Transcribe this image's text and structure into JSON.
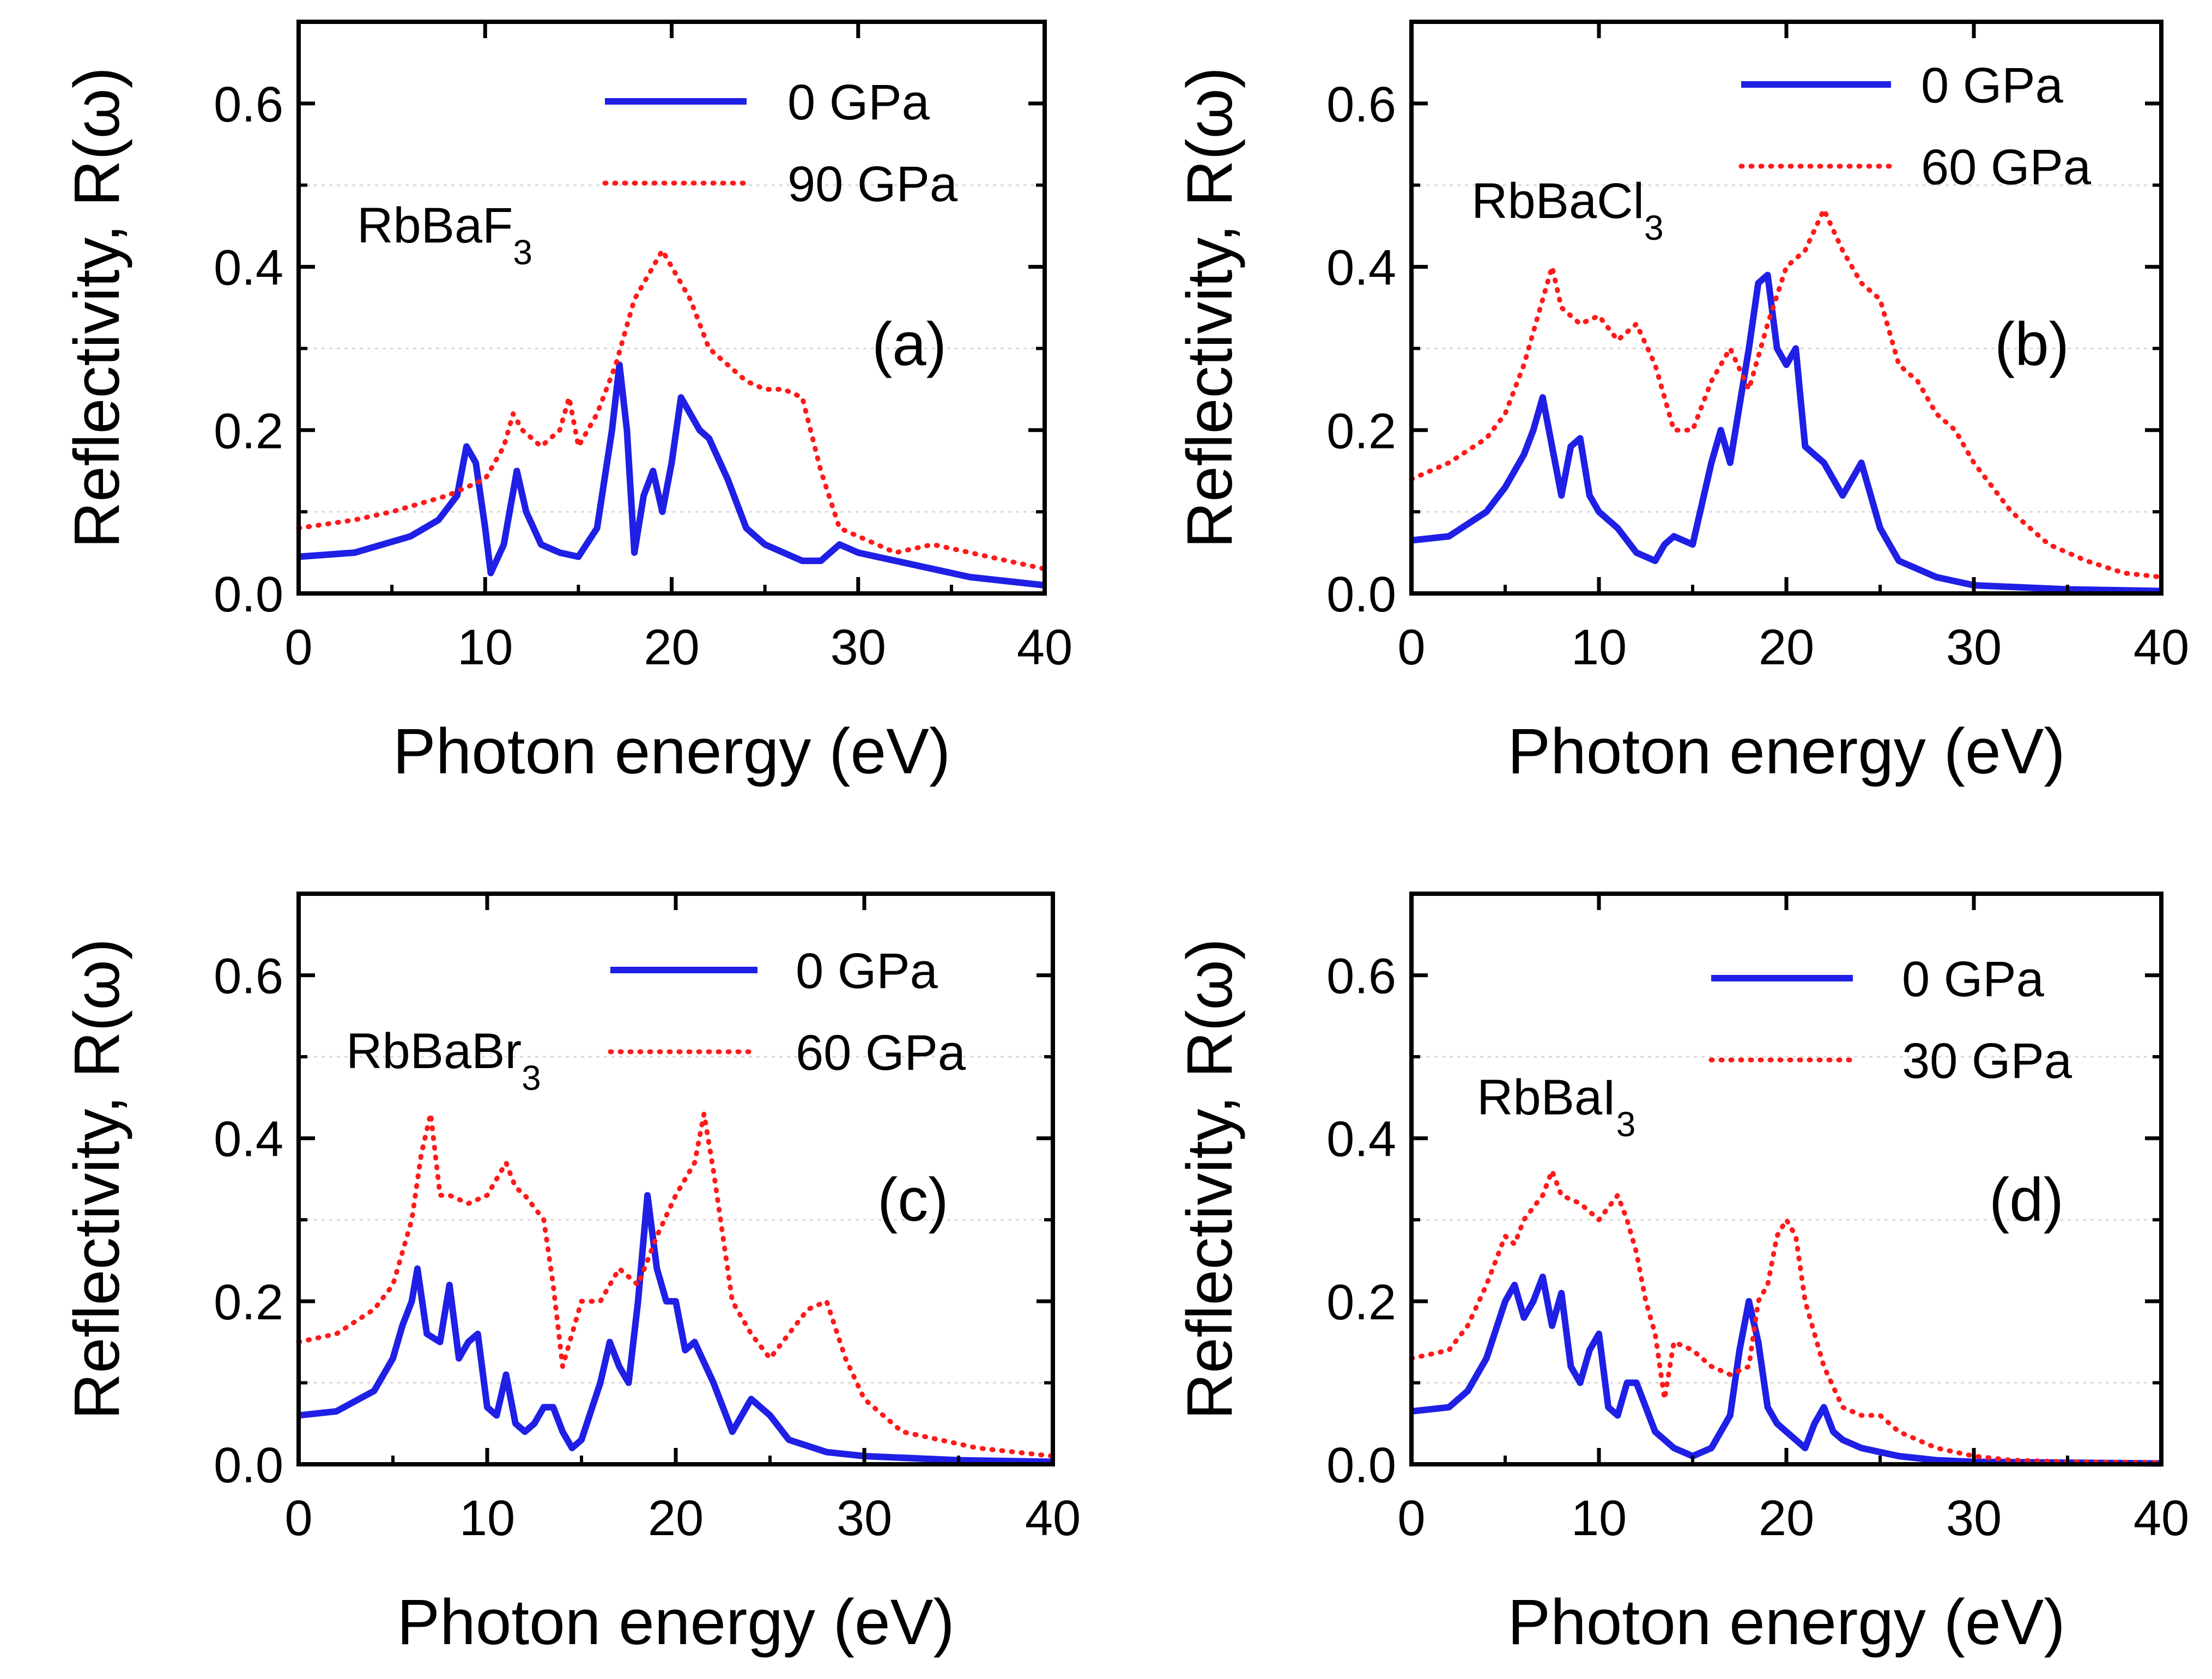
{
  "colors": {
    "series0": "#1f1fe6",
    "series1": "#ff1a1a",
    "grid": "#d9d9d9",
    "axis": "#000000"
  },
  "chart_data": [
    {
      "type": "line",
      "panel_label": "(a)",
      "compound": "RbBaF",
      "compound_sub": "3",
      "xlabel": "Photon energy (eV)",
      "ylabel": "Reflectivity, R(ω)",
      "xlim": [
        0,
        40
      ],
      "ylim": [
        0,
        0.7
      ],
      "xticks": [
        "0",
        "10",
        "20",
        "30",
        "40"
      ],
      "yticks": [
        "0.0",
        "0.2",
        "0.4",
        "0.6"
      ],
      "grid": "horizontal dotted at 0.1, 0.3, 0.5",
      "legend": "top-right",
      "series": [
        {
          "name": "0 GPa",
          "style": "solid",
          "x": [
            0,
            3,
            6,
            7.5,
            8.5,
            9,
            9.5,
            10,
            10.3,
            11,
            11.7,
            12.2,
            13,
            14,
            15,
            16,
            16.8,
            17.2,
            17.6,
            18,
            18.5,
            19,
            19.5,
            20,
            20.5,
            21,
            21.5,
            22,
            23,
            24,
            25,
            26,
            27,
            28,
            29,
            30,
            32,
            34,
            36,
            38,
            40
          ],
          "y": [
            0.045,
            0.05,
            0.07,
            0.09,
            0.12,
            0.18,
            0.16,
            0.08,
            0.025,
            0.06,
            0.15,
            0.1,
            0.06,
            0.05,
            0.045,
            0.08,
            0.2,
            0.28,
            0.2,
            0.05,
            0.12,
            0.15,
            0.1,
            0.16,
            0.24,
            0.22,
            0.2,
            0.19,
            0.14,
            0.08,
            0.06,
            0.05,
            0.04,
            0.04,
            0.06,
            0.05,
            0.04,
            0.03,
            0.02,
            0.015,
            0.01
          ]
        },
        {
          "name": "90 GPa",
          "style": "dotted",
          "x": [
            0,
            3,
            5,
            6.5,
            8,
            9,
            10,
            11,
            11.5,
            12,
            13,
            14,
            14.5,
            15,
            16,
            17,
            18,
            19,
            19.5,
            20,
            21,
            22,
            23,
            24,
            25,
            26,
            27,
            28,
            29,
            30,
            32,
            34,
            36,
            38,
            40
          ],
          "y": [
            0.08,
            0.09,
            0.1,
            0.11,
            0.12,
            0.13,
            0.14,
            0.18,
            0.22,
            0.2,
            0.18,
            0.2,
            0.24,
            0.18,
            0.22,
            0.28,
            0.36,
            0.4,
            0.42,
            0.4,
            0.36,
            0.3,
            0.28,
            0.26,
            0.25,
            0.25,
            0.24,
            0.15,
            0.08,
            0.07,
            0.05,
            0.06,
            0.05,
            0.04,
            0.03
          ]
        }
      ]
    },
    {
      "type": "line",
      "panel_label": "(b)",
      "compound": "RbBaCl",
      "compound_sub": "3",
      "xlabel": "Photon energy (eV)",
      "ylabel": "Reflectivity, R(ω)",
      "xlim": [
        0,
        40
      ],
      "ylim": [
        0,
        0.7
      ],
      "xticks": [
        "0",
        "10",
        "20",
        "30",
        "40"
      ],
      "yticks": [
        "0.0",
        "0.2",
        "0.4",
        "0.6"
      ],
      "grid": "horizontal dotted at 0.1, 0.3, 0.5",
      "legend": "top-right",
      "series": [
        {
          "name": "0 GPa",
          "style": "solid",
          "x": [
            0,
            2,
            4,
            5,
            6,
            6.5,
            7,
            7.5,
            8,
            8.5,
            9,
            9.5,
            10,
            11,
            12,
            13,
            13.5,
            14,
            15,
            16,
            16.5,
            17,
            18,
            18.5,
            19,
            19.5,
            20,
            20.5,
            21,
            22,
            23,
            24,
            25,
            26,
            28,
            30,
            35,
            40
          ],
          "y": [
            0.065,
            0.07,
            0.1,
            0.13,
            0.17,
            0.2,
            0.24,
            0.18,
            0.12,
            0.18,
            0.19,
            0.12,
            0.1,
            0.08,
            0.05,
            0.04,
            0.06,
            0.07,
            0.06,
            0.16,
            0.2,
            0.16,
            0.3,
            0.38,
            0.39,
            0.3,
            0.28,
            0.3,
            0.18,
            0.16,
            0.12,
            0.16,
            0.08,
            0.04,
            0.02,
            0.01,
            0.005,
            0.003
          ]
        },
        {
          "name": "60 GPa",
          "style": "dotted",
          "x": [
            0,
            2,
            4,
            5,
            6,
            7,
            7.5,
            8,
            9,
            10,
            11,
            12,
            13,
            14,
            15,
            16,
            17,
            18,
            19,
            20,
            21,
            22,
            23,
            24,
            25,
            26,
            27,
            28,
            29,
            30,
            32,
            34,
            36,
            38,
            40
          ],
          "y": [
            0.14,
            0.16,
            0.19,
            0.22,
            0.28,
            0.36,
            0.4,
            0.35,
            0.33,
            0.34,
            0.31,
            0.33,
            0.28,
            0.2,
            0.2,
            0.26,
            0.3,
            0.25,
            0.33,
            0.4,
            0.42,
            0.47,
            0.42,
            0.38,
            0.36,
            0.28,
            0.26,
            0.22,
            0.2,
            0.16,
            0.1,
            0.06,
            0.04,
            0.025,
            0.02
          ]
        }
      ]
    },
    {
      "type": "line",
      "panel_label": "(c)",
      "compound": "RbBaBr",
      "compound_sub": "3",
      "xlabel": "Photon energy (eV)",
      "ylabel": "Reflectivity, R(ω)",
      "xlim": [
        0,
        40
      ],
      "ylim": [
        0,
        0.7
      ],
      "xticks": [
        "0",
        "10",
        "20",
        "30",
        "40"
      ],
      "yticks": [
        "0.0",
        "0.2",
        "0.4",
        "0.6"
      ],
      "grid": "horizontal dotted at 0.1, 0.3, 0.5",
      "legend": "top-right",
      "series": [
        {
          "name": "0 GPa",
          "style": "solid",
          "x": [
            0,
            2,
            4,
            5,
            5.5,
            6,
            6.3,
            6.8,
            7.5,
            8,
            8.5,
            9,
            9.5,
            10,
            10.5,
            11,
            11.5,
            12,
            12.5,
            13,
            13.5,
            14,
            14.5,
            15,
            16,
            16.5,
            17,
            17.5,
            18,
            18.5,
            19,
            19.5,
            20,
            20.5,
            21,
            22,
            23,
            24,
            25,
            26,
            28,
            30,
            35,
            40
          ],
          "y": [
            0.06,
            0.065,
            0.09,
            0.13,
            0.17,
            0.2,
            0.24,
            0.16,
            0.15,
            0.22,
            0.13,
            0.15,
            0.16,
            0.07,
            0.06,
            0.11,
            0.05,
            0.04,
            0.05,
            0.07,
            0.07,
            0.04,
            0.02,
            0.03,
            0.1,
            0.15,
            0.12,
            0.1,
            0.2,
            0.33,
            0.24,
            0.2,
            0.2,
            0.14,
            0.15,
            0.1,
            0.04,
            0.08,
            0.06,
            0.03,
            0.015,
            0.01,
            0.005,
            0.003
          ]
        },
        {
          "name": "60 GPa",
          "style": "dotted",
          "x": [
            0,
            2,
            4,
            5,
            6,
            6.5,
            7,
            7.5,
            8,
            9,
            10,
            11,
            11.5,
            12,
            13,
            13.5,
            14,
            15,
            16,
            17,
            18,
            19,
            20,
            21,
            21.5,
            22,
            23,
            24,
            25,
            26,
            27,
            28,
            29,
            30,
            32,
            34,
            36,
            38,
            40
          ],
          "y": [
            0.15,
            0.16,
            0.19,
            0.22,
            0.3,
            0.38,
            0.43,
            0.33,
            0.33,
            0.32,
            0.33,
            0.37,
            0.34,
            0.33,
            0.3,
            0.22,
            0.12,
            0.2,
            0.2,
            0.24,
            0.22,
            0.28,
            0.33,
            0.37,
            0.43,
            0.36,
            0.2,
            0.16,
            0.13,
            0.16,
            0.19,
            0.2,
            0.13,
            0.08,
            0.04,
            0.03,
            0.02,
            0.015,
            0.01
          ]
        }
      ]
    },
    {
      "type": "line",
      "panel_label": "(d)",
      "compound": "RbBaI",
      "compound_sub": "3",
      "xlabel": "Photon energy (eV)",
      "ylabel": "Reflectivity, R(ω)",
      "xlim": [
        0,
        40
      ],
      "ylim": [
        0,
        0.7
      ],
      "xticks": [
        "0",
        "10",
        "20",
        "30",
        "40"
      ],
      "yticks": [
        "0.0",
        "0.2",
        "0.4",
        "0.6"
      ],
      "grid": "horizontal dotted at 0.1, 0.3, 0.5",
      "legend": "top-right",
      "series": [
        {
          "name": "0 GPa",
          "style": "solid",
          "x": [
            0,
            2,
            3,
            4,
            5,
            5.5,
            6,
            6.5,
            7,
            7.5,
            8,
            8.5,
            9,
            9.5,
            10,
            10.5,
            11,
            11.5,
            12,
            12.5,
            13,
            14,
            15,
            16,
            17,
            17.5,
            18,
            18.5,
            19,
            19.5,
            20,
            20.5,
            21,
            21.5,
            22,
            22.5,
            23,
            24,
            25,
            26,
            28,
            30,
            35,
            40
          ],
          "y": [
            0.065,
            0.07,
            0.09,
            0.13,
            0.2,
            0.22,
            0.18,
            0.2,
            0.23,
            0.17,
            0.21,
            0.12,
            0.1,
            0.14,
            0.16,
            0.07,
            0.06,
            0.1,
            0.1,
            0.07,
            0.04,
            0.02,
            0.01,
            0.02,
            0.06,
            0.14,
            0.2,
            0.15,
            0.07,
            0.05,
            0.04,
            0.03,
            0.02,
            0.05,
            0.07,
            0.04,
            0.03,
            0.02,
            0.015,
            0.01,
            0.005,
            0.003,
            0.002,
            0.001
          ]
        },
        {
          "name": "30 GPa",
          "style": "dotted",
          "x": [
            0,
            2,
            3,
            4,
            5,
            5.5,
            6,
            7,
            7.5,
            8,
            9,
            10,
            11,
            11.5,
            12,
            12.5,
            13,
            13.5,
            14,
            15,
            16,
            17,
            18,
            18.5,
            19,
            19.5,
            20,
            20.5,
            21,
            22,
            23,
            24,
            25,
            26,
            27,
            28,
            30,
            32,
            35,
            40
          ],
          "y": [
            0.13,
            0.14,
            0.17,
            0.22,
            0.28,
            0.27,
            0.3,
            0.33,
            0.36,
            0.33,
            0.32,
            0.3,
            0.33,
            0.3,
            0.26,
            0.2,
            0.16,
            0.08,
            0.15,
            0.14,
            0.12,
            0.11,
            0.12,
            0.2,
            0.22,
            0.28,
            0.3,
            0.28,
            0.2,
            0.12,
            0.07,
            0.06,
            0.06,
            0.04,
            0.03,
            0.02,
            0.01,
            0.005,
            0.003,
            0.002
          ]
        }
      ]
    }
  ]
}
